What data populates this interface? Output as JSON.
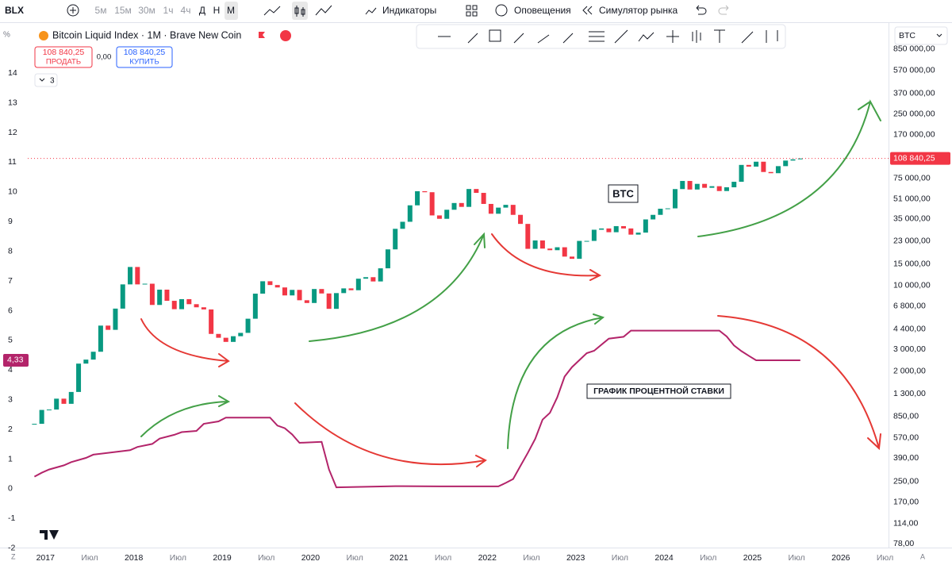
{
  "toolbar": {
    "symbol": "BLX",
    "intervals": [
      "5м",
      "15м",
      "30м",
      "1ч",
      "4ч",
      "Д",
      "Н",
      "М"
    ],
    "indicators": "Индикаторы",
    "alerts": "Оповещения",
    "replay": "Симулятор рынка"
  },
  "legend": {
    "title": "Bitcoin Liquid Index · 1M · Brave New Coin",
    "sell_price": "108 840,25",
    "sell": "ПРОДАТЬ",
    "spread": "0,00",
    "buy_price": "108 840,25",
    "buy": "КУПИТЬ",
    "collapsed_count": "3"
  },
  "left_scale_unit": "%",
  "right_scale_symbol": "BTC",
  "bottom_left": "Z",
  "bottom_right": "A",
  "chart_data": {
    "type": "candlestick",
    "xlim": [
      2016.8,
      2026.54
    ],
    "xticks": [
      2017,
      {
        "value": 2017.5,
        "label": "Июл"
      },
      2018,
      {
        "value": 2018.5,
        "label": "Июл"
      },
      2019,
      {
        "value": 2019.5,
        "label": "Июл"
      },
      2020,
      {
        "value": 2020.5,
        "label": "Июл"
      },
      2021,
      {
        "value": 2021.5,
        "label": "Июл"
      },
      2022,
      {
        "value": 2022.5,
        "label": "Июл"
      },
      2023,
      {
        "value": 2023.5,
        "label": "Июл"
      },
      2024,
      {
        "value": 2024.5,
        "label": "Июл"
      },
      2025,
      {
        "value": 2025.5,
        "label": "Июл"
      },
      2026,
      {
        "value": 2026.5,
        "label": "Июл"
      }
    ],
    "ylim": [
      -1.98,
      15.53
    ],
    "yticks": [
      -2,
      -1,
      0,
      1,
      2,
      3,
      4,
      5,
      6,
      7,
      8,
      9,
      10,
      11,
      12,
      13,
      14
    ],
    "y2lim": [
      72.4,
      1270000
    ],
    "y2log": true,
    "y2ticks": [
      {
        "value": 850000,
        "label": "850 000,00"
      },
      {
        "value": 570000,
        "label": "570 000,00"
      },
      {
        "value": 370000,
        "label": "370 000,00"
      },
      {
        "value": 250000,
        "label": "250 000,00"
      },
      {
        "value": 170000,
        "label": "170 000,00"
      },
      {
        "value": 75000,
        "label": "75 000,00"
      },
      {
        "value": 51000,
        "label": "51 000,00"
      },
      {
        "value": 35000,
        "label": "35 000,00"
      },
      {
        "value": 23000,
        "label": "23 000,00"
      },
      {
        "value": 15000,
        "label": "15 000,00"
      },
      {
        "value": 10000,
        "label": "10 000,00"
      },
      {
        "value": 6800,
        "label": "6 800,00"
      },
      {
        "value": 4400,
        "label": "4 400,00"
      },
      {
        "value": 3000,
        "label": "3 000,00"
      },
      {
        "value": 2000,
        "label": "2 000,00"
      },
      {
        "value": 1300,
        "label": "1 300,00"
      },
      {
        "value": 850,
        "label": "850,00"
      },
      {
        "value": 570,
        "label": "570,00"
      },
      {
        "value": 390,
        "label": "390,00"
      },
      {
        "value": 250,
        "label": "250,00"
      },
      {
        "value": 170,
        "label": "170,00"
      },
      {
        "value": 114,
        "label": "114,00"
      },
      {
        "value": 78,
        "label": "78,00"
      }
    ],
    "y_last": {
      "value": 4.33,
      "label": "4,33"
    },
    "y2_last": {
      "value": 108840.25,
      "label": "108 840,25"
    },
    "annotations": [
      {
        "text": "BTC"
      },
      {
        "text": "ГРАФИК ПРОЦЕНТНОЙ СТАВКИ"
      }
    ],
    "series": [
      {
        "axis": "y2",
        "color_up": "#089981",
        "color_down": "#f23645",
        "x": [
          "2016-11",
          "2016-12",
          "2017-01",
          "2017-02",
          "2017-03",
          "2017-04",
          "2017-05",
          "2017-06",
          "2017-07",
          "2017-08",
          "2017-09",
          "2017-10",
          "2017-11",
          "2017-12",
          "2018-01",
          "2018-02",
          "2018-03",
          "2018-04",
          "2018-05",
          "2018-06",
          "2018-07",
          "2018-08",
          "2018-09",
          "2018-10",
          "2018-11",
          "2018-12",
          "2019-01",
          "2019-02",
          "2019-03",
          "2019-04",
          "2019-05",
          "2019-06",
          "2019-07",
          "2019-08",
          "2019-09",
          "2019-10",
          "2019-11",
          "2019-12",
          "2020-01",
          "2020-02",
          "2020-03",
          "2020-04",
          "2020-05",
          "2020-06",
          "2020-07",
          "2020-08",
          "2020-09",
          "2020-10",
          "2020-11",
          "2020-12",
          "2021-01",
          "2021-02",
          "2021-03",
          "2021-04",
          "2021-05",
          "2021-06",
          "2021-07",
          "2021-08",
          "2021-09",
          "2021-10",
          "2021-11",
          "2021-12",
          "2022-01",
          "2022-02",
          "2022-03",
          "2022-04",
          "2022-05",
          "2022-06",
          "2022-07",
          "2022-08",
          "2022-09",
          "2022-10",
          "2022-11",
          "2022-12",
          "2023-01",
          "2023-02",
          "2023-03",
          "2023-04",
          "2023-05",
          "2023-06",
          "2023-07",
          "2023-08",
          "2023-09",
          "2023-10",
          "2023-11",
          "2023-12",
          "2024-01",
          "2024-02",
          "2024-03",
          "2024-04",
          "2024-05",
          "2024-06",
          "2024-07",
          "2024-08",
          "2024-09",
          "2024-10",
          "2024-11",
          "2024-12",
          "2025-01",
          "2025-02",
          "2025-03",
          "2025-04",
          "2025-05",
          "2025-06",
          "2025-07"
        ],
        "values": [
          742,
          963,
          970,
          1190,
          1080,
          1350,
          2300,
          2480,
          2875,
          4700,
          4340,
          6470,
          10200,
          14150,
          10200,
          10330,
          6930,
          9240,
          7490,
          6400,
          7730,
          7030,
          6630,
          6370,
          4020,
          3740,
          3460,
          3850,
          4100,
          5350,
          8570,
          10820,
          10080,
          9630,
          8290,
          9200,
          7570,
          7190,
          9350,
          8600,
          6440,
          8660,
          9460,
          9140,
          11350,
          11680,
          10780,
          13800,
          19700,
          29000,
          33100,
          45100,
          58800,
          57700,
          37300,
          35000,
          41500,
          47100,
          43800,
          61300,
          57000,
          46300,
          38500,
          43200,
          45500,
          37700,
          31800,
          19900,
          23300,
          20000,
          19400,
          20500,
          17200,
          16500,
          23100,
          23100,
          28500,
          29200,
          27200,
          30500,
          29200,
          26000,
          27000,
          34600,
          37700,
          42300,
          42600,
          61200,
          71300,
          60700,
          67500,
          62700,
          64600,
          59000,
          63300,
          70200,
          96400,
          93400,
          102400,
          84400,
          82500,
          94200,
          104600,
          107100,
          108840.25
        ]
      },
      {
        "axis": "y",
        "color": "#b3246a",
        "x": [
          "2016-11",
          "2016-12",
          "2017-01",
          "2017-03",
          "2017-04",
          "2017-06",
          "2017-07",
          "2017-12",
          "2018-01",
          "2018-03",
          "2018-04",
          "2018-06",
          "2018-07",
          "2018-09",
          "2018-10",
          "2018-12",
          "2019-01",
          "2019-07",
          "2019-08",
          "2019-09",
          "2019-10",
          "2019-11",
          "2020-02",
          "2020-03",
          "2020-04",
          "2020-12",
          "2021-06",
          "2022-02",
          "2022-03",
          "2022-04",
          "2022-05",
          "2022-06",
          "2022-07",
          "2022-08",
          "2022-09",
          "2022-10",
          "2022-11",
          "2022-12",
          "2023-02",
          "2023-03",
          "2023-05",
          "2023-07",
          "2023-08",
          "2024-08",
          "2024-09",
          "2024-10",
          "2024-11",
          "2024-12",
          "2025-01",
          "2025-07"
        ],
        "values": [
          0.41,
          0.54,
          0.65,
          0.79,
          0.9,
          1.04,
          1.15,
          1.3,
          1.41,
          1.51,
          1.69,
          1.82,
          1.91,
          1.95,
          2.19,
          2.27,
          2.4,
          2.4,
          2.13,
          2.04,
          1.83,
          1.55,
          1.58,
          0.65,
          0.05,
          0.09,
          0.08,
          0.08,
          0.2,
          0.33,
          0.77,
          1.21,
          1.68,
          2.33,
          2.56,
          3.08,
          3.78,
          4.1,
          4.57,
          4.65,
          5.06,
          5.12,
          5.33,
          5.33,
          5.13,
          4.83,
          4.64,
          4.48,
          4.33,
          4.33
        ]
      }
    ]
  }
}
